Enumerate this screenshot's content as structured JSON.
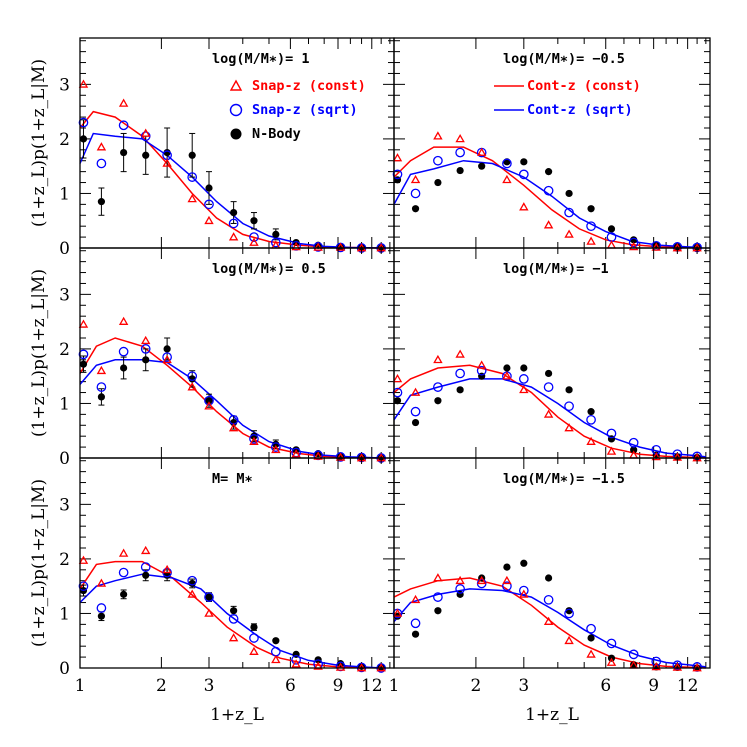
{
  "chart_data": {
    "type": "scatter",
    "layout": "3 rows x 2 columns, shared axes",
    "x_axis": {
      "label": "1+z_L",
      "scale": "log",
      "range": [
        1,
        14.5
      ],
      "tick_labels": [
        "1",
        "2",
        "3",
        "6",
        "9",
        "12"
      ],
      "tick_values": [
        1,
        2,
        3,
        6,
        9,
        12
      ]
    },
    "y_axis": {
      "label": "(1+z_L)p(1+z_L|M)",
      "range": [
        0,
        3.85
      ],
      "tick_labels": [
        "0",
        "1",
        "2",
        "3"
      ],
      "tick_values": [
        0,
        1,
        2,
        3
      ]
    },
    "legend": {
      "placement": "top of upper panels",
      "points": [
        {
          "label": "Snap-z (const)",
          "color": "#ff0000",
          "marker": "triangle"
        },
        {
          "label": "Snap-z (sqrt)",
          "color": "#0000ff",
          "marker": "open-circle"
        },
        {
          "label": "N-Body",
          "color": "#000000",
          "marker": "filled-circle"
        }
      ],
      "lines": [
        {
          "label": "Cont-z (const)",
          "color": "#ff0000"
        },
        {
          "label": "Cont-z (sqrt)",
          "color": "#0000ff"
        }
      ]
    },
    "panels": [
      {
        "title": "log(M/M∗)= 1",
        "x": [
          1.03,
          1.2,
          1.45,
          1.75,
          2.1,
          2.6,
          3.0,
          3.7,
          4.4,
          5.3,
          6.3,
          7.6,
          9.2,
          11.0,
          13.0
        ],
        "snap_const": [
          3.0,
          1.85,
          2.65,
          2.1,
          1.55,
          0.9,
          0.5,
          0.2,
          0.1,
          0.05,
          0.02,
          0.01,
          0.01,
          0.0,
          0.0
        ],
        "snap_sqrt": [
          2.3,
          1.55,
          2.25,
          2.05,
          1.7,
          1.3,
          0.8,
          0.45,
          0.2,
          0.1,
          0.04,
          0.02,
          0.01,
          0.0,
          0.0
        ],
        "nbody": [
          2.0,
          0.85,
          1.75,
          1.7,
          1.75,
          1.7,
          1.1,
          0.65,
          0.5,
          0.25,
          0.1,
          0.05,
          0.02,
          0.01,
          0.0
        ],
        "nbody_err": [
          0.35,
          0.25,
          0.35,
          0.35,
          0.45,
          0.4,
          0.3,
          0.2,
          0.15,
          0.1,
          0.05,
          0.03,
          0.02,
          0.01,
          0.01
        ],
        "cont_const": [
          [
            1.0,
            2.2
          ],
          [
            1.12,
            2.5
          ],
          [
            1.35,
            2.4
          ],
          [
            1.7,
            2.05
          ],
          [
            2.1,
            1.55
          ],
          [
            2.6,
            1.0
          ],
          [
            3.2,
            0.55
          ],
          [
            4.0,
            0.25
          ],
          [
            5.0,
            0.12
          ],
          [
            6.5,
            0.05
          ],
          [
            8.0,
            0.02
          ],
          [
            10.0,
            0.01
          ],
          [
            13.0,
            0.0
          ]
        ],
        "cont_sqrt": [
          [
            1.0,
            1.55
          ],
          [
            1.12,
            2.1
          ],
          [
            1.35,
            2.05
          ],
          [
            1.7,
            2.0
          ],
          [
            2.1,
            1.7
          ],
          [
            2.6,
            1.3
          ],
          [
            3.2,
            0.85
          ],
          [
            4.0,
            0.45
          ],
          [
            5.0,
            0.22
          ],
          [
            6.5,
            0.08
          ],
          [
            8.0,
            0.03
          ],
          [
            10.0,
            0.01
          ],
          [
            13.0,
            0.0
          ]
        ]
      },
      {
        "title": "log(M/M∗)= −0.5",
        "x": [
          1.03,
          1.2,
          1.45,
          1.75,
          2.1,
          2.6,
          3.0,
          3.7,
          4.4,
          5.3,
          6.3,
          7.6,
          9.2,
          11.0,
          13.0
        ],
        "snap_const": [
          1.65,
          1.25,
          2.05,
          2.0,
          1.75,
          1.25,
          0.75,
          0.42,
          0.25,
          0.12,
          0.05,
          0.02,
          0.01,
          0.0,
          0.0
        ],
        "snap_sqrt": [
          1.35,
          1.0,
          1.6,
          1.75,
          1.75,
          1.55,
          1.35,
          1.05,
          0.65,
          0.4,
          0.2,
          0.1,
          0.04,
          0.02,
          0.01
        ],
        "nbody": [
          1.25,
          0.72,
          1.2,
          1.42,
          1.5,
          1.58,
          1.58,
          1.4,
          1.0,
          0.72,
          0.35,
          0.15,
          0.05,
          0.02,
          0.01
        ],
        "nbody_err": [
          0.05,
          0.05,
          0.05,
          0.05,
          0.05,
          0.05,
          0.05,
          0.05,
          0.04,
          0.04,
          0.03,
          0.02,
          0.01,
          0.01,
          0.01
        ],
        "cont_const": [
          [
            1.0,
            1.3
          ],
          [
            1.15,
            1.6
          ],
          [
            1.4,
            1.85
          ],
          [
            1.8,
            1.85
          ],
          [
            2.3,
            1.6
          ],
          [
            3.0,
            1.15
          ],
          [
            3.8,
            0.7
          ],
          [
            4.8,
            0.35
          ],
          [
            6.0,
            0.15
          ],
          [
            7.5,
            0.06
          ],
          [
            9.5,
            0.02
          ],
          [
            12.0,
            0.01
          ],
          [
            13.5,
            0.0
          ]
        ],
        "cont_sqrt": [
          [
            1.0,
            0.8
          ],
          [
            1.15,
            1.35
          ],
          [
            1.4,
            1.45
          ],
          [
            1.8,
            1.6
          ],
          [
            2.3,
            1.55
          ],
          [
            3.0,
            1.3
          ],
          [
            3.8,
            0.95
          ],
          [
            4.8,
            0.55
          ],
          [
            6.0,
            0.3
          ],
          [
            7.5,
            0.12
          ],
          [
            9.5,
            0.05
          ],
          [
            12.0,
            0.02
          ],
          [
            13.5,
            0.01
          ]
        ]
      },
      {
        "title": "log(M/M∗)= 0.5",
        "x": [
          1.03,
          1.2,
          1.45,
          1.75,
          2.1,
          2.6,
          3.0,
          3.7,
          4.4,
          5.3,
          6.3,
          7.6,
          9.2,
          11.0,
          13.0
        ],
        "snap_const": [
          2.45,
          1.6,
          2.5,
          2.15,
          1.8,
          1.3,
          0.95,
          0.55,
          0.3,
          0.15,
          0.07,
          0.03,
          0.01,
          0.0,
          0.0
        ],
        "snap_sqrt": [
          1.9,
          1.3,
          1.95,
          2.0,
          1.85,
          1.5,
          1.05,
          0.7,
          0.35,
          0.2,
          0.1,
          0.05,
          0.02,
          0.01,
          0.0
        ],
        "nbody": [
          1.72,
          1.12,
          1.65,
          1.8,
          2.0,
          1.45,
          1.05,
          0.65,
          0.4,
          0.25,
          0.15,
          0.08,
          0.03,
          0.01,
          0.0
        ],
        "nbody_err": [
          0.15,
          0.15,
          0.2,
          0.2,
          0.2,
          0.15,
          0.12,
          0.12,
          0.1,
          0.08,
          0.05,
          0.03,
          0.02,
          0.01,
          0.01
        ],
        "cont_const": [
          [
            1.0,
            1.55
          ],
          [
            1.15,
            2.05
          ],
          [
            1.35,
            2.2
          ],
          [
            1.7,
            2.05
          ],
          [
            2.1,
            1.7
          ],
          [
            2.6,
            1.3
          ],
          [
            3.2,
            0.85
          ],
          [
            4.0,
            0.45
          ],
          [
            5.0,
            0.2
          ],
          [
            6.5,
            0.08
          ],
          [
            8.0,
            0.03
          ],
          [
            10.0,
            0.01
          ],
          [
            13.0,
            0.0
          ]
        ],
        "cont_sqrt": [
          [
            1.0,
            1.35
          ],
          [
            1.15,
            1.7
          ],
          [
            1.35,
            1.8
          ],
          [
            1.7,
            1.8
          ],
          [
            2.1,
            1.75
          ],
          [
            2.6,
            1.45
          ],
          [
            3.2,
            1.05
          ],
          [
            4.0,
            0.6
          ],
          [
            5.0,
            0.3
          ],
          [
            6.5,
            0.12
          ],
          [
            8.0,
            0.05
          ],
          [
            10.0,
            0.02
          ],
          [
            13.0,
            0.0
          ]
        ]
      },
      {
        "title": "log(M/M∗)= −1",
        "x": [
          1.03,
          1.2,
          1.45,
          1.75,
          2.1,
          2.6,
          3.0,
          3.7,
          4.4,
          5.3,
          6.3,
          7.6,
          9.2,
          11.0,
          13.0
        ],
        "snap_const": [
          1.45,
          1.2,
          1.8,
          1.9,
          1.7,
          1.5,
          1.25,
          0.8,
          0.55,
          0.3,
          0.12,
          0.05,
          0.02,
          0.01,
          0.0
        ],
        "snap_sqrt": [
          1.2,
          0.85,
          1.3,
          1.55,
          1.6,
          1.5,
          1.45,
          1.3,
          0.95,
          0.7,
          0.45,
          0.28,
          0.15,
          0.07,
          0.03
        ],
        "nbody": [
          1.05,
          0.65,
          1.05,
          1.25,
          1.5,
          1.65,
          1.65,
          1.55,
          1.25,
          0.85,
          0.35,
          0.15,
          0.05,
          0.02,
          0.01
        ],
        "nbody_err": [
          0.05,
          0.05,
          0.05,
          0.05,
          0.05,
          0.05,
          0.05,
          0.05,
          0.05,
          0.05,
          0.04,
          0.03,
          0.02,
          0.01,
          0.01
        ],
        "cont_const": [
          [
            1.0,
            1.2
          ],
          [
            1.15,
            1.45
          ],
          [
            1.45,
            1.65
          ],
          [
            1.9,
            1.7
          ],
          [
            2.5,
            1.55
          ],
          [
            3.2,
            1.2
          ],
          [
            4.0,
            0.75
          ],
          [
            5.0,
            0.4
          ],
          [
            6.3,
            0.18
          ],
          [
            8.0,
            0.07
          ],
          [
            10.0,
            0.03
          ],
          [
            13.0,
            0.01
          ],
          [
            14.0,
            0.0
          ]
        ],
        "cont_sqrt": [
          [
            1.0,
            0.7
          ],
          [
            1.15,
            1.15
          ],
          [
            1.45,
            1.3
          ],
          [
            1.9,
            1.45
          ],
          [
            2.5,
            1.45
          ],
          [
            3.2,
            1.3
          ],
          [
            4.0,
            1.0
          ],
          [
            5.0,
            0.65
          ],
          [
            6.3,
            0.38
          ],
          [
            8.0,
            0.2
          ],
          [
            10.0,
            0.09
          ],
          [
            13.0,
            0.04
          ],
          [
            14.0,
            0.02
          ]
        ]
      },
      {
        "title": "M= M∗",
        "x": [
          1.03,
          1.2,
          1.45,
          1.75,
          2.1,
          2.6,
          3.0,
          3.7,
          4.4,
          5.3,
          6.3,
          7.6,
          9.2,
          11.0,
          13.0
        ],
        "snap_const": [
          1.97,
          1.55,
          2.1,
          2.15,
          1.8,
          1.35,
          1.0,
          0.55,
          0.3,
          0.15,
          0.07,
          0.03,
          0.01,
          0.0,
          0.0
        ],
        "snap_sqrt": [
          1.5,
          1.1,
          1.75,
          1.85,
          1.75,
          1.6,
          1.3,
          0.9,
          0.55,
          0.3,
          0.15,
          0.07,
          0.03,
          0.01,
          0.0
        ],
        "nbody": [
          1.42,
          0.95,
          1.35,
          1.7,
          1.7,
          1.55,
          1.3,
          1.05,
          0.75,
          0.5,
          0.25,
          0.15,
          0.08,
          0.03,
          0.01
        ],
        "nbody_err": [
          0.1,
          0.08,
          0.08,
          0.1,
          0.1,
          0.08,
          0.08,
          0.08,
          0.06,
          0.05,
          0.04,
          0.03,
          0.02,
          0.01,
          0.01
        ],
        "cont_const": [
          [
            1.0,
            1.45
          ],
          [
            1.15,
            1.9
          ],
          [
            1.35,
            1.95
          ],
          [
            1.7,
            1.95
          ],
          [
            2.2,
            1.65
          ],
          [
            2.8,
            1.2
          ],
          [
            3.5,
            0.75
          ],
          [
            4.5,
            0.38
          ],
          [
            5.5,
            0.18
          ],
          [
            7.0,
            0.07
          ],
          [
            9.0,
            0.02
          ],
          [
            11.0,
            0.01
          ],
          [
            13.0,
            0.0
          ]
        ],
        "cont_sqrt": [
          [
            1.0,
            1.2
          ],
          [
            1.15,
            1.5
          ],
          [
            1.35,
            1.6
          ],
          [
            1.7,
            1.72
          ],
          [
            2.2,
            1.65
          ],
          [
            2.8,
            1.45
          ],
          [
            3.5,
            1.0
          ],
          [
            4.5,
            0.6
          ],
          [
            5.5,
            0.32
          ],
          [
            7.0,
            0.14
          ],
          [
            9.0,
            0.05
          ],
          [
            11.0,
            0.02
          ],
          [
            13.0,
            0.0
          ]
        ]
      },
      {
        "title": "log(M/M∗)= −1.5",
        "x": [
          1.03,
          1.2,
          1.45,
          1.75,
          2.1,
          2.6,
          3.0,
          3.7,
          4.4,
          5.3,
          6.3,
          7.6,
          9.2,
          11.0,
          13.0
        ],
        "snap_const": [
          1.0,
          1.25,
          1.65,
          1.6,
          1.6,
          1.6,
          1.35,
          0.85,
          0.5,
          0.25,
          0.1,
          0.05,
          0.02,
          0.01,
          0.0
        ],
        "snap_sqrt": [
          1.0,
          0.82,
          1.3,
          1.45,
          1.55,
          1.5,
          1.42,
          1.25,
          1.0,
          0.72,
          0.45,
          0.25,
          0.12,
          0.05,
          0.02
        ],
        "nbody": [
          0.95,
          0.62,
          1.05,
          1.35,
          1.65,
          1.85,
          1.92,
          1.65,
          1.05,
          0.55,
          0.18,
          0.06,
          0.02,
          0.01,
          0.0
        ],
        "nbody_err": [
          0.05,
          0.05,
          0.05,
          0.05,
          0.05,
          0.05,
          0.05,
          0.05,
          0.05,
          0.05,
          0.03,
          0.02,
          0.01,
          0.01,
          0.01
        ],
        "cont_const": [
          [
            1.0,
            1.3
          ],
          [
            1.15,
            1.45
          ],
          [
            1.45,
            1.6
          ],
          [
            1.9,
            1.65
          ],
          [
            2.5,
            1.5
          ],
          [
            3.2,
            1.15
          ],
          [
            4.0,
            0.75
          ],
          [
            5.0,
            0.42
          ],
          [
            6.3,
            0.2
          ],
          [
            8.0,
            0.08
          ],
          [
            10.0,
            0.03
          ],
          [
            13.0,
            0.01
          ],
          [
            14.0,
            0.0
          ]
        ],
        "cont_sqrt": [
          [
            1.0,
            0.85
          ],
          [
            1.15,
            1.2
          ],
          [
            1.45,
            1.35
          ],
          [
            1.9,
            1.45
          ],
          [
            2.5,
            1.42
          ],
          [
            3.2,
            1.3
          ],
          [
            4.0,
            1.02
          ],
          [
            5.0,
            0.7
          ],
          [
            6.3,
            0.42
          ],
          [
            8.0,
            0.22
          ],
          [
            10.0,
            0.1
          ],
          [
            13.0,
            0.04
          ],
          [
            14.0,
            0.02
          ]
        ]
      }
    ]
  }
}
